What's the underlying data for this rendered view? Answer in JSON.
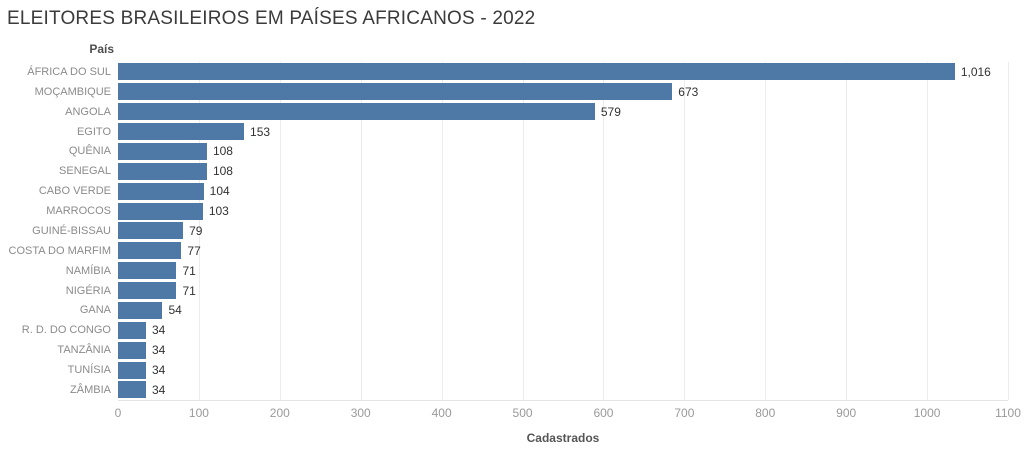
{
  "colors": {
    "bar": "#4e79a7",
    "gridline": "#ececec",
    "axis_line": "#e4e4e4",
    "title_text": "#3b3b3b",
    "category_text": "#8b8b8b",
    "value_text": "#323232",
    "tick_text": "#9a9a9a"
  },
  "chart_data": {
    "type": "bar",
    "orientation": "horizontal",
    "title": "ELEITORES BRASILEIROS EM PAÍSES AFRICANOS - 2022",
    "row_header": "País",
    "xlabel": "Cadastrados",
    "categories": [
      "ÁFRICA DO SUL",
      "MOÇAMBIQUE",
      "ANGOLA",
      "EGITO",
      "QUÊNIA",
      "SENEGAL",
      "CABO VERDE",
      "MARROCOS",
      "GUINÉ-BISSAU",
      "COSTA DO MARFIM",
      "NAMÍBIA",
      "NIGÉRIA",
      "GANA",
      "R. D. DO CONGO",
      "TANZÂNIA",
      "TUNÍSIA",
      "ZÂMBIA"
    ],
    "values": [
      1016,
      673,
      579,
      153,
      108,
      108,
      104,
      103,
      79,
      77,
      71,
      71,
      54,
      34,
      34,
      34,
      34
    ],
    "value_labels": [
      "1,016",
      "673",
      "579",
      "153",
      "108",
      "108",
      "104",
      "103",
      "79",
      "77",
      "71",
      "71",
      "54",
      "34",
      "34",
      "34",
      "34"
    ],
    "xlim": [
      0,
      1100
    ],
    "xticks": [
      0,
      100,
      200,
      300,
      400,
      500,
      600,
      700,
      800,
      900,
      1000,
      1100
    ],
    "grid": "vertical",
    "legend": "none"
  }
}
